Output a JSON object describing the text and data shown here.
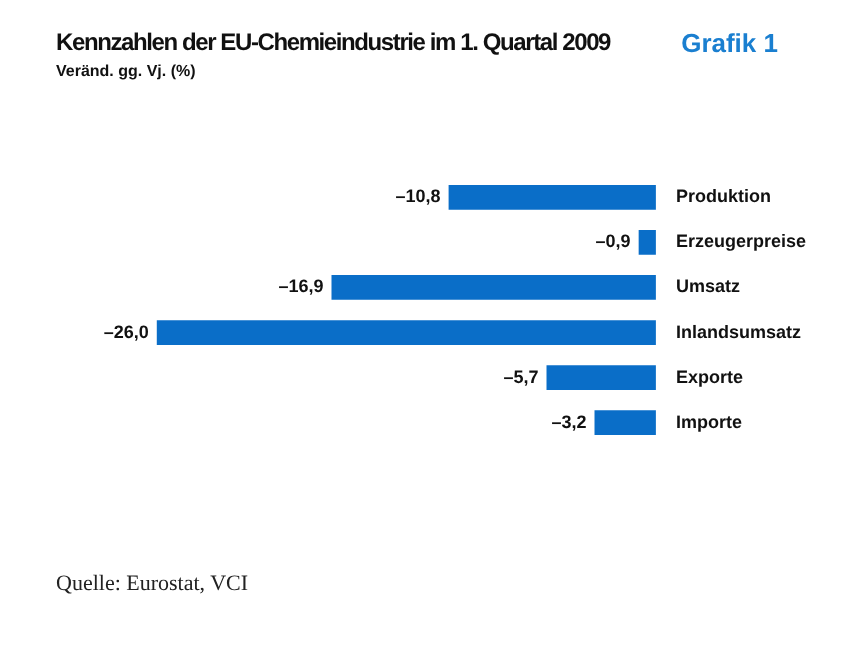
{
  "chart_data": {
    "type": "bar",
    "title": "Kennzahlen der EU-Chemieindustrie im 1. Quartal 2009",
    "subtitle": "Veränd. gg. Vj. (%)",
    "orientation": "horizontal",
    "categories": [
      "Produktion",
      "Erzeugerpreise",
      "Umsatz",
      "Inlandsumsatz",
      "Exporte",
      "Importe"
    ],
    "values": [
      -10.8,
      -0.9,
      -16.9,
      -26.0,
      -5.7,
      -3.2
    ],
    "value_labels": [
      "–10,8",
      "–0,9",
      "–16,9",
      "–26,0",
      "–5,7",
      "–3,2"
    ],
    "color": "#0a6ec8",
    "tick_labels": "y",
    "legend": false,
    "annotations": [
      "Grafik 1",
      "Quelle: Eurostat, VCI"
    ]
  }
}
